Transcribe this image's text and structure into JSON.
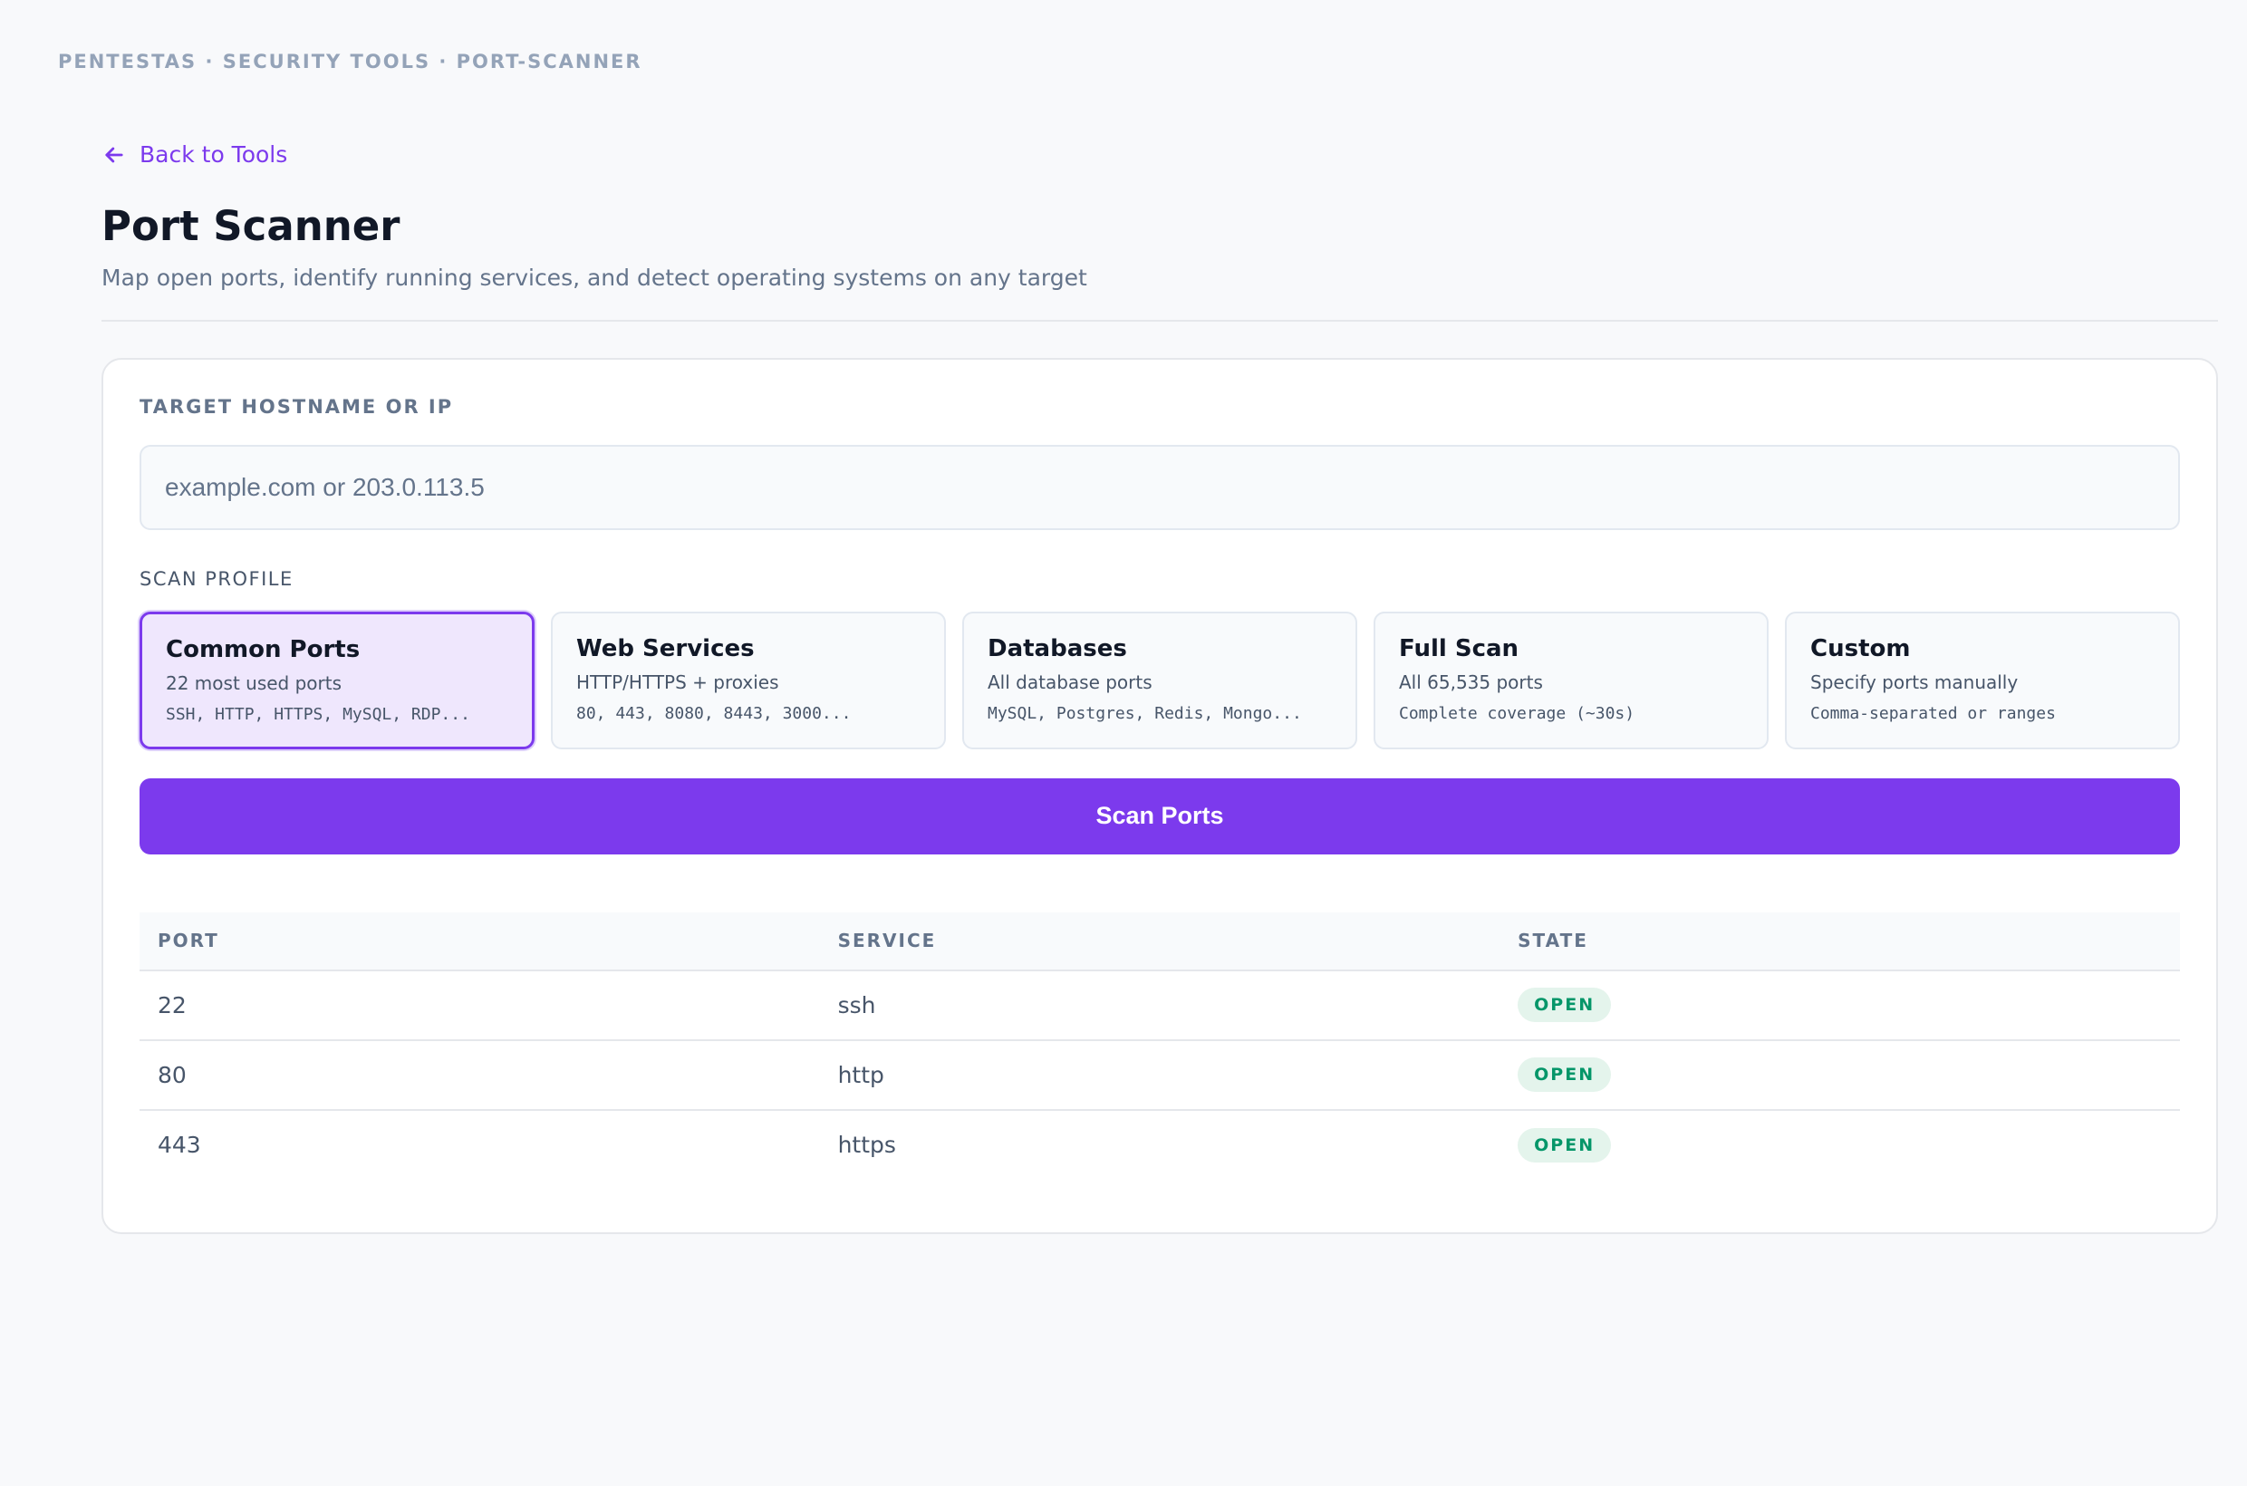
{
  "breadcrumb": "PENTESTAS · SECURITY TOOLS · PORT-SCANNER",
  "back_link": "Back to Tools",
  "page": {
    "title": "Port Scanner",
    "subtitle": "Map open ports, identify running services, and detect operating systems on any target"
  },
  "target": {
    "label": "TARGET HOSTNAME OR IP",
    "value": "",
    "placeholder": "example.com or 203.0.113.5"
  },
  "scan_profile": {
    "label": "SCAN PROFILE",
    "selected": "Common Ports",
    "options": [
      {
        "name": "Common Ports",
        "desc": "22 most used ports",
        "ports": "SSH, HTTP, HTTPS, MySQL, RDP..."
      },
      {
        "name": "Web Services",
        "desc": "HTTP/HTTPS + proxies",
        "ports": "80, 443, 8080, 8443, 3000..."
      },
      {
        "name": "Databases",
        "desc": "All database ports",
        "ports": "MySQL, Postgres, Redis, Mongo..."
      },
      {
        "name": "Full Scan",
        "desc": "All 65,535 ports",
        "ports": "Complete coverage (~30s)"
      },
      {
        "name": "Custom",
        "desc": "Specify ports manually",
        "ports": "Comma-separated or ranges"
      }
    ]
  },
  "scan_button": "Scan Ports",
  "results": {
    "columns": [
      "PORT",
      "SERVICE",
      "STATE"
    ],
    "rows": [
      {
        "port": "22",
        "service": "ssh",
        "state": "OPEN"
      },
      {
        "port": "80",
        "service": "http",
        "state": "OPEN"
      },
      {
        "port": "443",
        "service": "https",
        "state": "OPEN"
      }
    ]
  },
  "colors": {
    "accent": "#7c3aed",
    "open_state": "#059669",
    "open_state_bg": "#e4f4ec"
  },
  "icons": {
    "back": "arrow-left-icon"
  }
}
